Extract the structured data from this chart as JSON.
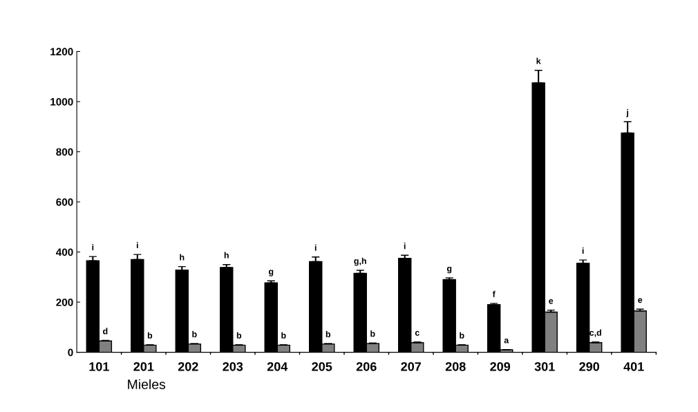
{
  "chart_data": {
    "type": "bar",
    "xlabel": "Mieles",
    "categories": [
      "101",
      "201",
      "202",
      "203",
      "204",
      "205",
      "206",
      "207",
      "208",
      "209",
      "301",
      "290",
      "401"
    ],
    "series": [
      {
        "color": "#000000",
        "values": [
          365,
          370,
          328,
          338,
          277,
          362,
          315,
          375,
          290,
          190,
          1075,
          355,
          875
        ],
        "errors": [
          [
            365,
            382
          ],
          [
            370,
            390
          ],
          [
            328,
            342
          ],
          [
            338,
            350
          ],
          [
            277,
            285
          ],
          [
            362,
            380
          ],
          [
            315,
            327
          ],
          [
            375,
            387
          ],
          [
            290,
            297
          ],
          [
            190,
            195
          ],
          [
            1075,
            1125
          ],
          [
            355,
            368
          ],
          [
            875,
            920
          ]
        ],
        "value_labels": [
          "i",
          "i",
          "h",
          "h",
          "g",
          "i",
          "g,h",
          "i",
          "g",
          "f",
          "k",
          "i",
          "j"
        ]
      },
      {
        "color": "#808080",
        "values": [
          45,
          28,
          33,
          28,
          28,
          33,
          35,
          38,
          28,
          10,
          160,
          38,
          165
        ],
        "errors": [
          [
            45,
            47
          ],
          [
            28,
            30
          ],
          [
            33,
            35
          ],
          [
            28,
            30
          ],
          [
            28,
            30
          ],
          [
            33,
            35
          ],
          [
            35,
            37
          ],
          [
            38,
            41
          ],
          [
            28,
            30
          ],
          [
            10,
            11
          ],
          [
            160,
            168
          ],
          [
            38,
            41
          ],
          [
            165,
            172
          ]
        ],
        "value_labels": [
          "d",
          "b",
          "b",
          "b",
          "b",
          "b",
          "b",
          "c",
          "b",
          "a",
          "e",
          "c,d",
          "e"
        ]
      }
    ],
    "ylim": [
      0,
      1200
    ],
    "yticks": [
      0,
      200,
      400,
      600,
      800,
      1000,
      1200
    ],
    "grid": false,
    "legend": false
  }
}
